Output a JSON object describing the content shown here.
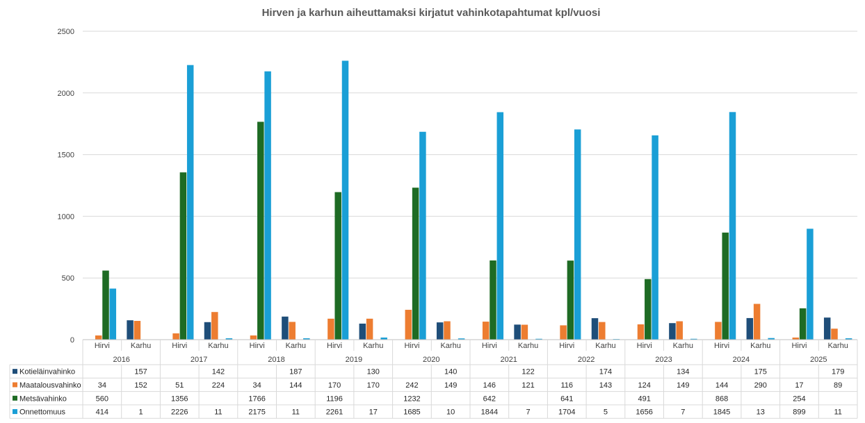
{
  "chart_data": {
    "type": "bar",
    "title": "Hirven ja karhun aiheuttamaksi kirjatut vahinkotapahtumat kpl/vuosi",
    "years": [
      "2016",
      "2017",
      "2018",
      "2019",
      "2020",
      "2021",
      "2022",
      "2023",
      "2024",
      "2025"
    ],
    "animals": [
      "Hirvi",
      "Karhu"
    ],
    "ylim": [
      0,
      2500
    ],
    "yticks": [
      0,
      500,
      1000,
      1500,
      2000,
      2500
    ],
    "grid": true,
    "legend": "data-table",
    "series": [
      {
        "name": "Kotieläinvahinko",
        "color": "#1f4e79",
        "values": [
          null,
          157,
          null,
          142,
          null,
          187,
          null,
          130,
          null,
          140,
          null,
          122,
          null,
          174,
          null,
          134,
          null,
          175,
          null,
          179
        ]
      },
      {
        "name": "Maatalousvahinko",
        "color": "#ed7d31",
        "values": [
          34,
          152,
          51,
          224,
          34,
          144,
          170,
          170,
          242,
          149,
          146,
          121,
          116,
          143,
          124,
          149,
          144,
          290,
          17,
          89
        ]
      },
      {
        "name": "Metsävahinko",
        "color": "#1e6b24",
        "values": [
          560,
          null,
          1356,
          null,
          1766,
          null,
          1196,
          null,
          1232,
          null,
          642,
          null,
          641,
          null,
          491,
          null,
          868,
          null,
          254,
          null
        ]
      },
      {
        "name": "Onnettomuus",
        "color": "#1a9fd6",
        "values": [
          414,
          1,
          2226,
          11,
          2175,
          11,
          2261,
          17,
          1685,
          10,
          1844,
          7,
          1704,
          5,
          1656,
          7,
          1845,
          13,
          899,
          11
        ]
      }
    ]
  }
}
